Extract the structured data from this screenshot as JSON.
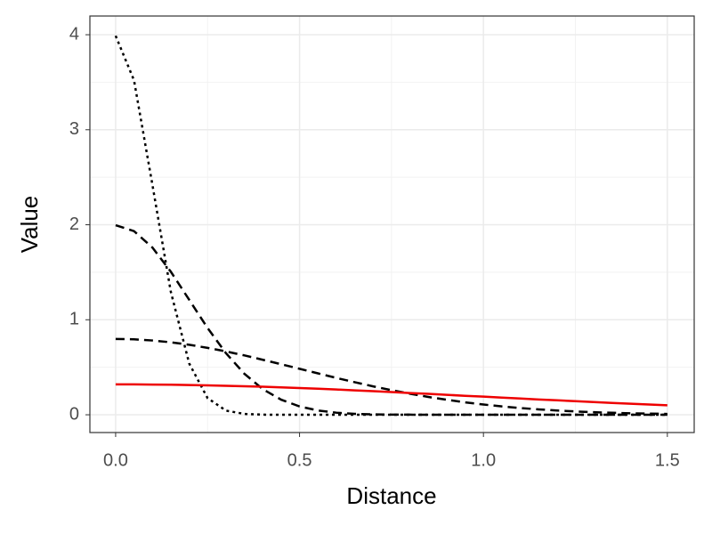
{
  "chart_data": {
    "type": "line",
    "x_label": "Distance",
    "y_label": "Value",
    "x": [
      0,
      0.05,
      0.1,
      0.15,
      0.2,
      0.25,
      0.3,
      0.35,
      0.4,
      0.45,
      0.5,
      0.55,
      0.6,
      0.65,
      0.7,
      0.75,
      0.8,
      0.85,
      0.9,
      0.95,
      1.0,
      1.05,
      1.1,
      1.15,
      1.2,
      1.25,
      1.3,
      1.35,
      1.4,
      1.45,
      1.5
    ],
    "series": [
      {
        "color": "#000000",
        "dash": "dotted",
        "values": [
          3.989,
          3.52,
          2.42,
          1.295,
          0.54,
          0.175,
          0.044,
          0.009,
          0.001,
          0,
          0,
          0,
          0,
          0,
          0,
          0,
          0,
          0,
          0,
          0,
          0,
          0,
          0,
          0,
          0,
          0,
          0,
          0,
          0,
          0,
          0
        ]
      },
      {
        "color": "#000000",
        "dash": "dashed",
        "values": [
          1.995,
          1.933,
          1.76,
          1.506,
          1.21,
          0.913,
          0.648,
          0.432,
          0.27,
          0.159,
          0.088,
          0.045,
          0.022,
          0.01,
          0.004,
          0.002,
          0.001,
          0,
          0,
          0,
          0,
          0,
          0,
          0,
          0,
          0,
          0,
          0,
          0,
          0,
          0
        ]
      },
      {
        "color": "#000000",
        "dash": "dashed",
        "values": [
          0.798,
          0.794,
          0.782,
          0.763,
          0.737,
          0.704,
          0.667,
          0.625,
          0.579,
          0.532,
          0.484,
          0.436,
          0.388,
          0.343,
          0.299,
          0.259,
          0.222,
          0.188,
          0.158,
          0.131,
          0.108,
          0.088,
          0.071,
          0.057,
          0.045,
          0.035,
          0.027,
          0.021,
          0.016,
          0.012,
          0.009
        ]
      },
      {
        "color": "#ee0000",
        "dash": "solid",
        "values": [
          0.32,
          0.32,
          0.318,
          0.316,
          0.313,
          0.31,
          0.305,
          0.3,
          0.295,
          0.288,
          0.281,
          0.274,
          0.266,
          0.257,
          0.248,
          0.239,
          0.229,
          0.22,
          0.21,
          0.2,
          0.191,
          0.181,
          0.171,
          0.161,
          0.152,
          0.143,
          0.134,
          0.124,
          0.116,
          0.108,
          0.1
        ]
      }
    ],
    "xlim": [
      -0.07,
      1.573
    ],
    "ylim": [
      -0.187,
      4.197
    ],
    "xticks": [
      {
        "value": 0,
        "label": "0.0"
      },
      0.5,
      {
        "value": 1,
        "label": "1.0"
      },
      1.5
    ],
    "yticks": [
      0,
      1,
      2,
      3,
      4
    ],
    "grid": true
  }
}
